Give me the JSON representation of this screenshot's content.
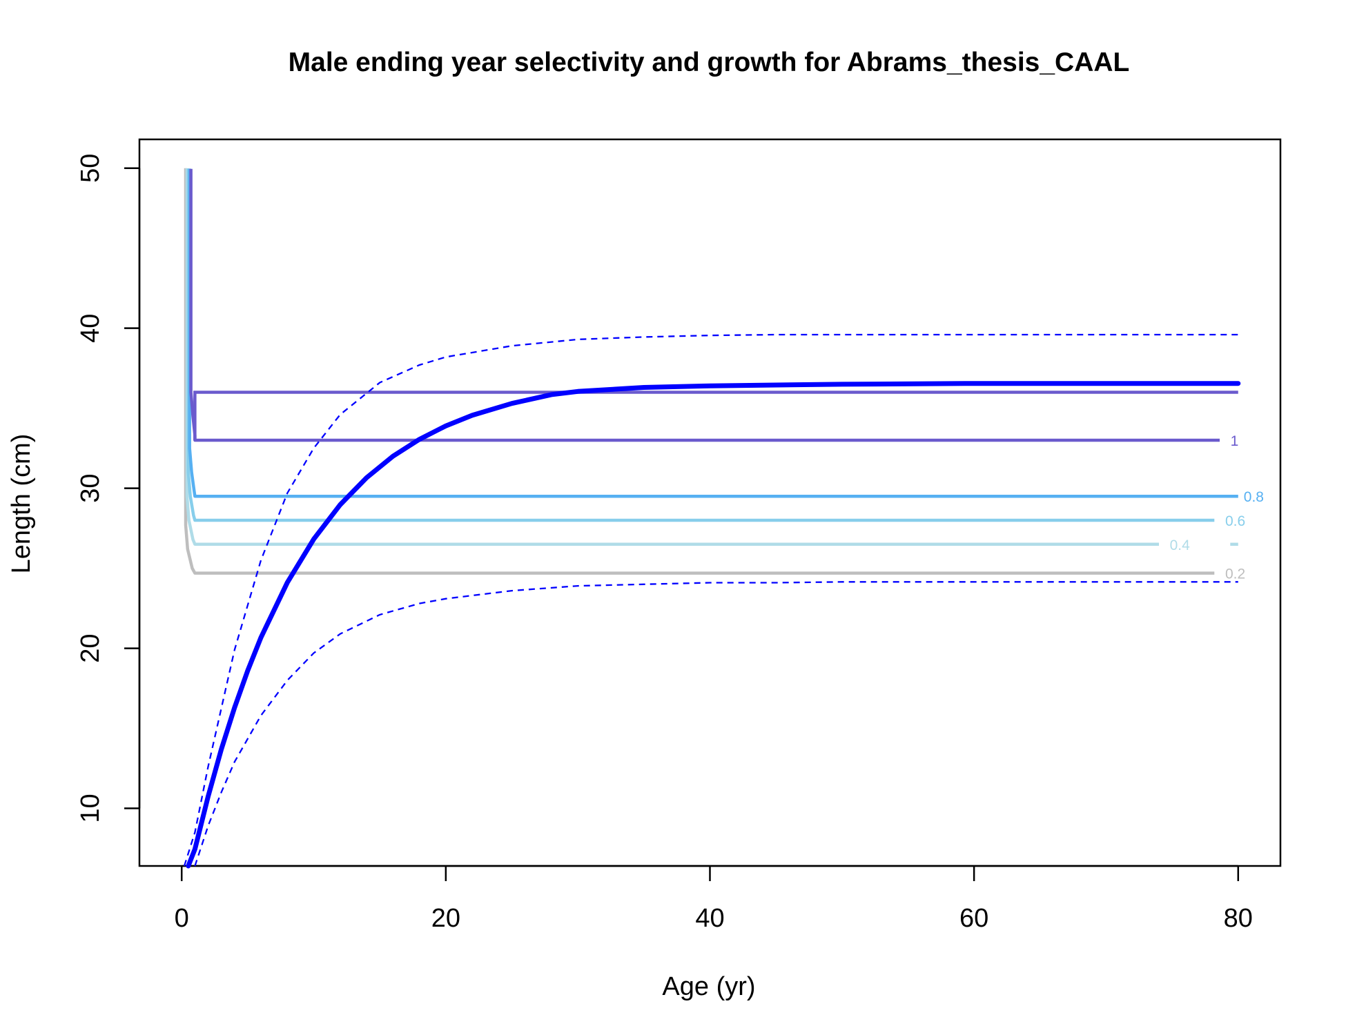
{
  "chart_data": {
    "type": "line",
    "title": "Male ending year selectivity and growth for Abrams_thesis_CAAL",
    "xlabel": "Age (yr)",
    "ylabel": "Length (cm)",
    "xlim": [
      -3.2,
      83.2
    ],
    "ylim": [
      6.4,
      51.8
    ],
    "xticks": [
      0,
      20,
      40,
      60,
      80
    ],
    "yticks": [
      10,
      20,
      30,
      40,
      50
    ],
    "grid": false,
    "legend": "none",
    "growth": {
      "color": "#0000FF",
      "mean": {
        "x": [
          0.5,
          1,
          2,
          3,
          4,
          5,
          6,
          8,
          10,
          12,
          14,
          16,
          18,
          20,
          22,
          25,
          28,
          30,
          35,
          40,
          45,
          50,
          60,
          70,
          80
        ],
        "y": [
          6.4,
          7.45,
          10.74,
          13.68,
          16.29,
          18.61,
          20.67,
          24.11,
          26.82,
          28.97,
          30.66,
          32.0,
          33.06,
          33.9,
          34.56,
          35.3,
          35.85,
          36.05,
          36.3,
          36.4,
          36.45,
          36.5,
          36.55,
          36.55,
          36.55
        ]
      },
      "upper": {
        "x": [
          0.2,
          1,
          2,
          4,
          6,
          8,
          10,
          12,
          15,
          18,
          20,
          25,
          30,
          35,
          40,
          45,
          50,
          60,
          70,
          80
        ],
        "y": [
          6.4,
          8.5,
          12.6,
          19.9,
          25.5,
          29.7,
          32.5,
          34.6,
          36.6,
          37.7,
          38.2,
          38.9,
          39.3,
          39.45,
          39.55,
          39.6,
          39.6,
          39.6,
          39.6,
          39.6
        ]
      },
      "lower": {
        "x": [
          1,
          2,
          3,
          4,
          6,
          8,
          10,
          12,
          15,
          18,
          20,
          25,
          30,
          35,
          40,
          45,
          50,
          60,
          70,
          80
        ],
        "y": [
          6.4,
          8.9,
          11.0,
          12.9,
          15.8,
          18.0,
          19.7,
          20.9,
          22.1,
          22.8,
          23.1,
          23.6,
          23.9,
          24.0,
          24.1,
          24.1,
          24.15,
          24.15,
          24.15,
          24.15
        ]
      }
    },
    "selectivity_contours": [
      {
        "level": "0.2",
        "color": "#BEBEBE",
        "y_flat": 24.7,
        "ages": [
          1.0,
          78.2
        ],
        "label": "0.2"
      },
      {
        "level": "0.4",
        "color": "#B0DCE8",
        "y_flat": 26.5,
        "ages": [
          1.0,
          74.0
        ],
        "label": "0.4"
      },
      {
        "level": "0.6",
        "color": "#87CEEB",
        "y_flat": 28.0,
        "ages": [
          1.0,
          78.2
        ],
        "label": "0.6"
      },
      {
        "level": "0.8",
        "color": "#56B0F2",
        "y_flat": 29.5,
        "ages": [
          1.0,
          80.0
        ],
        "label": "0.8"
      },
      {
        "level": "1",
        "color": "#6A5ACD",
        "y_flat": 33.0,
        "ages": [
          1.0,
          78.6
        ],
        "label": "1"
      }
    ],
    "selectivity_box_top": 36.0
  }
}
